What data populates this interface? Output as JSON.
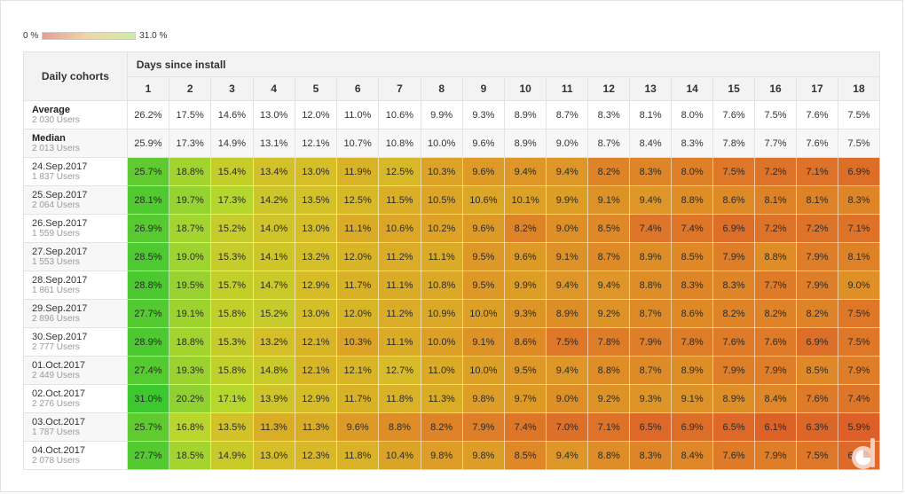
{
  "legend": {
    "min_label": "0 %",
    "max_label": "31.0 %"
  },
  "table": {
    "corner_label": "Daily cohorts",
    "group_label": "Days since install",
    "days": [
      "1",
      "2",
      "3",
      "4",
      "5",
      "6",
      "7",
      "8",
      "9",
      "10",
      "11",
      "12",
      "13",
      "14",
      "15",
      "16",
      "17",
      "18"
    ],
    "stats": [
      {
        "name": "Average",
        "users": "2 030 Users",
        "values": [
          "26.2%",
          "17.5%",
          "14.6%",
          "13.0%",
          "12.0%",
          "11.0%",
          "10.6%",
          "9.9%",
          "9.3%",
          "8.9%",
          "8.7%",
          "8.3%",
          "8.1%",
          "8.0%",
          "7.6%",
          "7.5%",
          "7.6%",
          "7.5%"
        ]
      },
      {
        "name": "Median",
        "users": "2 013 Users",
        "values": [
          "25.9%",
          "17.3%",
          "14.9%",
          "13.1%",
          "12.1%",
          "10.7%",
          "10.8%",
          "10.0%",
          "9.6%",
          "8.9%",
          "9.0%",
          "8.7%",
          "8.4%",
          "8.3%",
          "7.8%",
          "7.7%",
          "7.6%",
          "7.5%"
        ]
      }
    ],
    "cohorts": [
      {
        "date": "24.Sep.2017",
        "users": "1 837 Users",
        "values": [
          "25.7%",
          "18.8%",
          "15.4%",
          "13.4%",
          "13.0%",
          "11.9%",
          "12.5%",
          "10.3%",
          "9.6%",
          "9.4%",
          "9.4%",
          "8.2%",
          "8.3%",
          "8.0%",
          "7.5%",
          "7.2%",
          "7.1%",
          "6.9%"
        ]
      },
      {
        "date": "25.Sep.2017",
        "users": "2 064 Users",
        "values": [
          "28.1%",
          "19.7%",
          "17.3%",
          "14.2%",
          "13.5%",
          "12.5%",
          "11.5%",
          "10.5%",
          "10.6%",
          "10.1%",
          "9.9%",
          "9.1%",
          "9.4%",
          "8.8%",
          "8.6%",
          "8.1%",
          "8.1%",
          "8.3%"
        ]
      },
      {
        "date": "26.Sep.2017",
        "users": "1 559 Users",
        "values": [
          "26.9%",
          "18.7%",
          "15.2%",
          "14.0%",
          "13.0%",
          "11.1%",
          "10.6%",
          "10.2%",
          "9.6%",
          "8.2%",
          "9.0%",
          "8.5%",
          "7.4%",
          "7.4%",
          "6.9%",
          "7.2%",
          "7.2%",
          "7.1%"
        ]
      },
      {
        "date": "27.Sep.2017",
        "users": "1 553 Users",
        "values": [
          "28.5%",
          "19.0%",
          "15.3%",
          "14.1%",
          "13.2%",
          "12.0%",
          "11.2%",
          "11.1%",
          "9.5%",
          "9.6%",
          "9.1%",
          "8.7%",
          "8.9%",
          "8.5%",
          "7.9%",
          "8.8%",
          "7.9%",
          "8.1%"
        ]
      },
      {
        "date": "28.Sep.2017",
        "users": "1 861 Users",
        "values": [
          "28.8%",
          "19.5%",
          "15.7%",
          "14.7%",
          "12.9%",
          "11.7%",
          "11.1%",
          "10.8%",
          "9.5%",
          "9.9%",
          "9.4%",
          "9.4%",
          "8.8%",
          "8.3%",
          "8.3%",
          "7.7%",
          "7.9%",
          "9.0%"
        ]
      },
      {
        "date": "29.Sep.2017",
        "users": "2 896 Users",
        "values": [
          "27.7%",
          "19.1%",
          "15.8%",
          "15.2%",
          "13.0%",
          "12.0%",
          "11.2%",
          "10.9%",
          "10.0%",
          "9.3%",
          "8.9%",
          "9.2%",
          "8.7%",
          "8.6%",
          "8.2%",
          "8.2%",
          "8.2%",
          "7.5%"
        ]
      },
      {
        "date": "30.Sep.2017",
        "users": "2 777 Users",
        "values": [
          "28.9%",
          "18.8%",
          "15.3%",
          "13.2%",
          "12.1%",
          "10.3%",
          "11.1%",
          "10.0%",
          "9.1%",
          "8.6%",
          "7.5%",
          "7.8%",
          "7.9%",
          "7.8%",
          "7.6%",
          "7.6%",
          "6.9%",
          "7.5%"
        ]
      },
      {
        "date": "01.Oct.2017",
        "users": "2 449 Users",
        "values": [
          "27.4%",
          "19.3%",
          "15.8%",
          "14.8%",
          "12.1%",
          "12.1%",
          "12.7%",
          "11.0%",
          "10.0%",
          "9.5%",
          "9.4%",
          "8.8%",
          "8.7%",
          "8.9%",
          "7.9%",
          "7.9%",
          "8.5%",
          "7.9%"
        ]
      },
      {
        "date": "02.Oct.2017",
        "users": "2 276 Users",
        "values": [
          "31.0%",
          "20.2%",
          "17.1%",
          "13.9%",
          "12.9%",
          "11.7%",
          "11.8%",
          "11.3%",
          "9.8%",
          "9.7%",
          "9.0%",
          "9.2%",
          "9.3%",
          "9.1%",
          "8.9%",
          "8.4%",
          "7.6%",
          "7.4%"
        ]
      },
      {
        "date": "03.Oct.2017",
        "users": "1 787 Users",
        "values": [
          "25.7%",
          "16.8%",
          "13.5%",
          "11.3%",
          "11.3%",
          "9.6%",
          "8.8%",
          "8.2%",
          "7.9%",
          "7.4%",
          "7.0%",
          "7.1%",
          "6.5%",
          "6.9%",
          "6.5%",
          "6.1%",
          "6.3%",
          "5.9%"
        ]
      },
      {
        "date": "04.Oct.2017",
        "users": "2 078 Users",
        "values": [
          "27.7%",
          "18.5%",
          "14.9%",
          "13.0%",
          "12.3%",
          "11.8%",
          "10.4%",
          "9.8%",
          "9.8%",
          "8.5%",
          "9.4%",
          "8.8%",
          "8.3%",
          "8.4%",
          "7.6%",
          "7.9%",
          "7.5%",
          "6.6%"
        ]
      }
    ]
  },
  "colors": {
    "high": "#4cc93c",
    "mid": "#d8b727",
    "low": "#d9652a"
  },
  "logo": {
    "icon": "d-logo-icon"
  }
}
